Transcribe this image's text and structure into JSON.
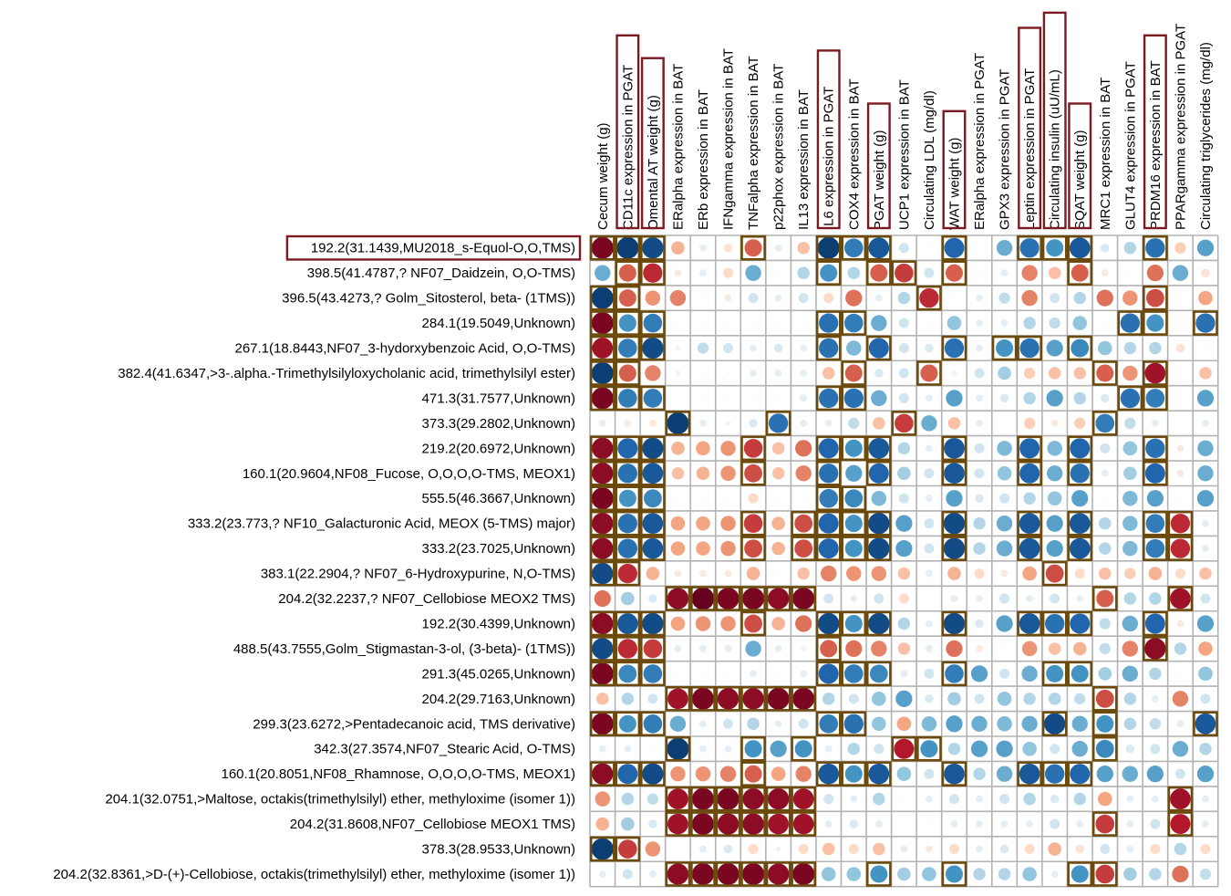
{
  "chart_data": {
    "type": "heatmap",
    "title": "",
    "xlabel": "",
    "ylabel": "",
    "value_range": [
      -1,
      1
    ],
    "colors": {
      "negative": "#67001f",
      "zero": "#f7f7f7",
      "positive": "#053061",
      "grid": "#b3b3b3",
      "highlight_box": "#6b4a0c",
      "selected_box": "#7b1a22"
    },
    "columns": [
      "Cecum weight (g)",
      "CD11c expression in PGAT",
      "Omental AT weight (g)",
      "ERalpha expression in BAT",
      "ERb expression in BAT",
      "IFNgamma expression in BAT",
      "TNFalpha expression in BAT",
      "p22phox expression in BAT",
      "IL13 expression in BAT",
      "IL6 expression in PGAT",
      "COX4 expression in BAT",
      "PGAT weight (g)",
      "UCP1 expression in BAT",
      "Circulating LDL (mg/dl)",
      "WAT weight (g)",
      "ERalpha expression in PGAT",
      "GPX3 expression in PGAT",
      "Leptin expression in PGAT",
      "Circulating insulin (uU/mL)",
      "SQAT weight (g)",
      "MRC1 expression in BAT",
      "GLUT4 expression in PGAT",
      "PRDM16 expression in BAT",
      "PPARgamma expression in PGAT",
      "Circulating triglycerides (mg/dl)"
    ],
    "highlighted_columns": [
      1,
      2,
      9,
      11,
      14,
      17,
      18,
      19,
      22
    ],
    "rows": [
      "192.2(31.1439,MU2018_s-Equol-O,O,TMS)",
      "398.5(41.4787,? NF07_Daidzein, O,O-TMS)",
      "396.5(43.4273,? Golm_Sitosterol, beta- (1TMS))",
      "284.1(19.5049,Unknown)",
      "267.1(18.8443,NF07_3-hydorxybenzoic Acid, O,O-TMS)",
      "382.4(41.6347,>3-.alpha.-Trimethylsilyloxycholanic acid, trimethylsilyl ester)",
      "471.3(31.7577,Unknown)",
      "373.3(29.2802,Unknown)",
      "219.2(20.6972,Unknown)",
      "160.1(20.9604,NF08_Fucose, O,O,O,O-TMS, MEOX1)",
      "555.5(46.3667,Unknown)",
      "333.2(23.773,? NF10_Galacturonic Acid, MEOX (5-TMS) major)",
      "333.2(23.7025,Unknown)",
      "383.1(22.2904,? NF07_6-Hydroxypurine, N,O-TMS)",
      "204.2(32.2237,? NF07_Cellobiose MEOX2 TMS)",
      "192.2(30.4399,Unknown)",
      "488.5(43.7555,Golm_Stigmastan-3-ol, (3-beta)- (1TMS))",
      "291.3(45.0265,Unknown)",
      "204.2(29.7163,Unknown)",
      "299.3(23.6272,>Pentadecanoic acid, TMS derivative)",
      "342.3(27.3574,NF07_Stearic Acid, O-TMS)",
      "160.1(20.8051,NF08_Rhamnose, O,O,O,O-TMS, MEOX1)",
      "204.1(32.0751,>Maltose, octakis(trimethylsilyl) ether, methyloxime (isomer 1))",
      "204.2(31.8608,NF07_Cellobiose MEOX1 TMS)",
      "378.3(28.9533,Unknown)",
      "204.2(32.8361,>D-(+)-Cellobiose, octakis(trimethylsilyl) ether, methyloxime (isomer 1))"
    ],
    "highlighted_rows": [
      0
    ],
    "values": [
      [
        -0.95,
        0.95,
        0.9,
        -0.35,
        0.1,
        -0.15,
        -0.6,
        0.1,
        -0.3,
        0.95,
        0.7,
        0.85,
        0.2,
        0,
        0.8,
        0,
        0.5,
        0.75,
        0.6,
        0.85,
        0.15,
        0.3,
        0.75,
        -0.25,
        0.55
      ],
      [
        0.5,
        -0.6,
        -0.75,
        -0.1,
        0.1,
        -0.2,
        0.5,
        0,
        0.3,
        0.6,
        0.3,
        -0.6,
        -0.7,
        0.2,
        -0.6,
        0,
        0.1,
        -0.5,
        -0.3,
        -0.6,
        -0.1,
        0,
        -0.55,
        0.5,
        -0.15
      ],
      [
        0.95,
        -0.6,
        -0.45,
        -0.5,
        0,
        -0.1,
        0.2,
        0.1,
        0.2,
        -0.2,
        -0.55,
        0.1,
        0.3,
        -0.75,
        0,
        0.1,
        0.25,
        -0.5,
        0.2,
        0.3,
        -0.55,
        -0.45,
        -0.65,
        0,
        -0.4
      ],
      [
        -0.95,
        0.6,
        0.7,
        0,
        0,
        0,
        0,
        0,
        0,
        0.75,
        0.7,
        0.5,
        0.2,
        0,
        0.4,
        0.1,
        0.1,
        0.3,
        0.25,
        0.4,
        0,
        0.75,
        0.6,
        0,
        0.75
      ],
      [
        -0.85,
        0.7,
        0.9,
        -0.05,
        0.25,
        0.2,
        0.1,
        0.15,
        0.1,
        0.75,
        0.45,
        0.8,
        0.2,
        0.15,
        0.75,
        0.1,
        0.6,
        0.75,
        0.55,
        0.65,
        0.4,
        0.3,
        0.3,
        -0.15,
        0
      ],
      [
        0.95,
        -0.6,
        -0.5,
        0.05,
        0,
        0,
        0.1,
        0.1,
        0.1,
        -0.3,
        -0.6,
        0.15,
        0.2,
        -0.6,
        0.05,
        0.2,
        0.35,
        -0.25,
        -0.3,
        -0.3,
        -0.6,
        -0.45,
        -0.85,
        0,
        -0.3
      ],
      [
        -0.95,
        0.7,
        0.7,
        0,
        0,
        0,
        0,
        0,
        0.1,
        0.75,
        0.75,
        0.5,
        0.2,
        0.1,
        0.55,
        0.1,
        0.15,
        0.3,
        0.55,
        0.3,
        0.15,
        0.75,
        0.7,
        0,
        0.55
      ],
      [
        0.1,
        -0.1,
        -0.1,
        0.95,
        0.1,
        0.05,
        0.15,
        0.75,
        0.1,
        0.1,
        0.25,
        -0.3,
        -0.7,
        0.5,
        -0.3,
        0.1,
        0,
        -0.25,
        -0.1,
        -0.25,
        0.7,
        0.25,
        0.1,
        0,
        0.1
      ],
      [
        -0.9,
        0.8,
        0.9,
        -0.35,
        -0.4,
        -0.45,
        -0.7,
        -0.3,
        -0.55,
        0.8,
        0.6,
        0.85,
        0.3,
        0.1,
        0.85,
        0.2,
        0.45,
        0.8,
        0.45,
        0.8,
        0.2,
        0.4,
        0.75,
        -0.1,
        0.5
      ],
      [
        -0.9,
        0.75,
        0.85,
        -0.3,
        -0.35,
        -0.45,
        -0.65,
        -0.3,
        -0.5,
        0.75,
        0.55,
        0.8,
        0.35,
        0.2,
        0.85,
        0.2,
        0.4,
        0.8,
        0.5,
        0.75,
        0.1,
        0.35,
        0.8,
        -0.1,
        0.5
      ],
      [
        -0.95,
        0.6,
        0.65,
        0,
        0,
        0,
        -0.2,
        0,
        0,
        0.7,
        0.65,
        0.45,
        0.2,
        0.1,
        0.55,
        0.15,
        0.2,
        0.3,
        0.4,
        0.55,
        0,
        0.45,
        0.55,
        0,
        0.55
      ],
      [
        -0.9,
        0.75,
        0.85,
        -0.4,
        -0.4,
        -0.45,
        -0.7,
        -0.35,
        -0.65,
        0.8,
        0.6,
        0.9,
        0.55,
        0.2,
        0.9,
        0.3,
        0.5,
        0.85,
        0.55,
        0.85,
        0.3,
        0.45,
        0.7,
        -0.75,
        0.1
      ],
      [
        -0.9,
        0.75,
        0.85,
        -0.4,
        -0.4,
        -0.45,
        -0.65,
        -0.35,
        -0.65,
        0.8,
        0.6,
        0.9,
        0.55,
        0.2,
        0.9,
        0.3,
        0.5,
        0.85,
        0.55,
        0.85,
        0.3,
        0.45,
        0.7,
        -0.75,
        0.1
      ],
      [
        0.9,
        -0.75,
        -0.35,
        -0.1,
        -0.1,
        -0.1,
        -0.35,
        0,
        -0.3,
        -0.5,
        -0.45,
        -0.45,
        -0.3,
        0.1,
        -0.35,
        -0.2,
        -0.1,
        -0.4,
        -0.65,
        -0.2,
        -0.3,
        -0.25,
        -0.35,
        -0.2,
        -0.3
      ],
      [
        -0.55,
        0.35,
        0.15,
        -0.9,
        -1,
        -0.95,
        -0.95,
        -0.9,
        -0.95,
        0.2,
        0.1,
        0.2,
        -0.2,
        0,
        0.1,
        0.1,
        0.2,
        0.1,
        0.2,
        0.1,
        -0.6,
        0.3,
        0.3,
        -0.85,
        0.2
      ],
      [
        -0.9,
        0.85,
        0.9,
        -0.4,
        -0.45,
        -0.45,
        -0.65,
        -0.35,
        -0.55,
        0.9,
        0.6,
        0.9,
        0.3,
        0.1,
        0.9,
        0.15,
        0.55,
        0.85,
        0.75,
        0.8,
        0.25,
        0.5,
        0.8,
        -0.1,
        0.55
      ],
      [
        0.9,
        -0.75,
        -0.7,
        0.1,
        0.1,
        0.1,
        0.5,
        0.1,
        0.05,
        -0.6,
        -0.55,
        -0.5,
        -0.3,
        0.1,
        -0.55,
        -0.1,
        0,
        -0.45,
        -0.3,
        -0.35,
        0.25,
        -0.5,
        -0.9,
        0.3,
        -0.4
      ],
      [
        -0.95,
        0.65,
        0.7,
        0,
        0,
        0,
        0.1,
        0,
        0.1,
        0.8,
        0.7,
        0.65,
        0.1,
        0.2,
        0.7,
        0.55,
        0.2,
        0.5,
        0.6,
        0.6,
        0.35,
        0.5,
        0.3,
        0,
        0.4
      ],
      [
        -0.3,
        0.3,
        0.2,
        -0.85,
        -0.95,
        -0.9,
        -0.9,
        -0.95,
        -0.95,
        0.3,
        0.2,
        0.4,
        0.55,
        0.15,
        0.35,
        0.2,
        0.4,
        0.3,
        0.3,
        0.25,
        -0.65,
        0.3,
        0.1,
        -0.5,
        0.2
      ],
      [
        -0.95,
        0.6,
        0.7,
        0.5,
        0.1,
        0.2,
        0.3,
        0.1,
        0.2,
        0.7,
        0.75,
        0.4,
        -0.4,
        0.45,
        0.55,
        0.5,
        0.45,
        0.5,
        0.9,
        0.5,
        0.6,
        0.3,
        0.25,
        0.1,
        0.85
      ],
      [
        0.1,
        0.1,
        0,
        0.95,
        0.1,
        0.1,
        0.6,
        0.55,
        0.6,
        0.1,
        0.3,
        0.2,
        -0.8,
        0.6,
        0.3,
        0.55,
        0.55,
        0.4,
        0.2,
        0.5,
        0.65,
        0.15,
        0.2,
        0.5,
        0.3
      ],
      [
        -0.9,
        0.8,
        0.9,
        -0.45,
        -0.45,
        -0.5,
        -0.6,
        -0.4,
        -0.5,
        0.85,
        0.6,
        0.85,
        0.4,
        0.2,
        0.85,
        0.3,
        0.5,
        0.85,
        0.75,
        0.8,
        0.55,
        0.5,
        0.55,
        0.2,
        0.55
      ],
      [
        -0.45,
        0.3,
        0.25,
        -0.85,
        -0.95,
        -0.95,
        -0.9,
        -0.9,
        -0.85,
        0.2,
        0.1,
        0.3,
        0,
        0.1,
        0.2,
        0.1,
        0.2,
        0.3,
        0.15,
        0.3,
        -0.4,
        0.1,
        0.1,
        -0.85,
        0.1
      ],
      [
        -0.35,
        0.35,
        0.15,
        -0.85,
        -0.95,
        -0.9,
        -0.9,
        -0.85,
        -0.85,
        0.1,
        0.15,
        0.1,
        0,
        0,
        0.1,
        0.1,
        0.1,
        0.1,
        0.2,
        0.1,
        -0.7,
        0.1,
        0.2,
        -0.8,
        0.1
      ],
      [
        0.95,
        -0.7,
        -0.45,
        0,
        0.1,
        0.15,
        -0.2,
        0.05,
        -0.2,
        -0.3,
        -0.2,
        -0.3,
        0.1,
        -0.1,
        -0.2,
        0.1,
        0.15,
        -0.2,
        -0.35,
        -0.15,
        0.2,
        0.1,
        -0.2,
        0.3,
        -0.2
      ],
      [
        0.1,
        0.2,
        0.1,
        -0.9,
        -0.95,
        -0.95,
        -0.95,
        -0.9,
        -0.95,
        0.4,
        0.4,
        0.6,
        0.35,
        0.4,
        0.6,
        0.3,
        0.3,
        0.4,
        0.1,
        0.6,
        -0.7,
        0.35,
        0.3,
        -0.55,
        0.25
      ]
    ]
  }
}
